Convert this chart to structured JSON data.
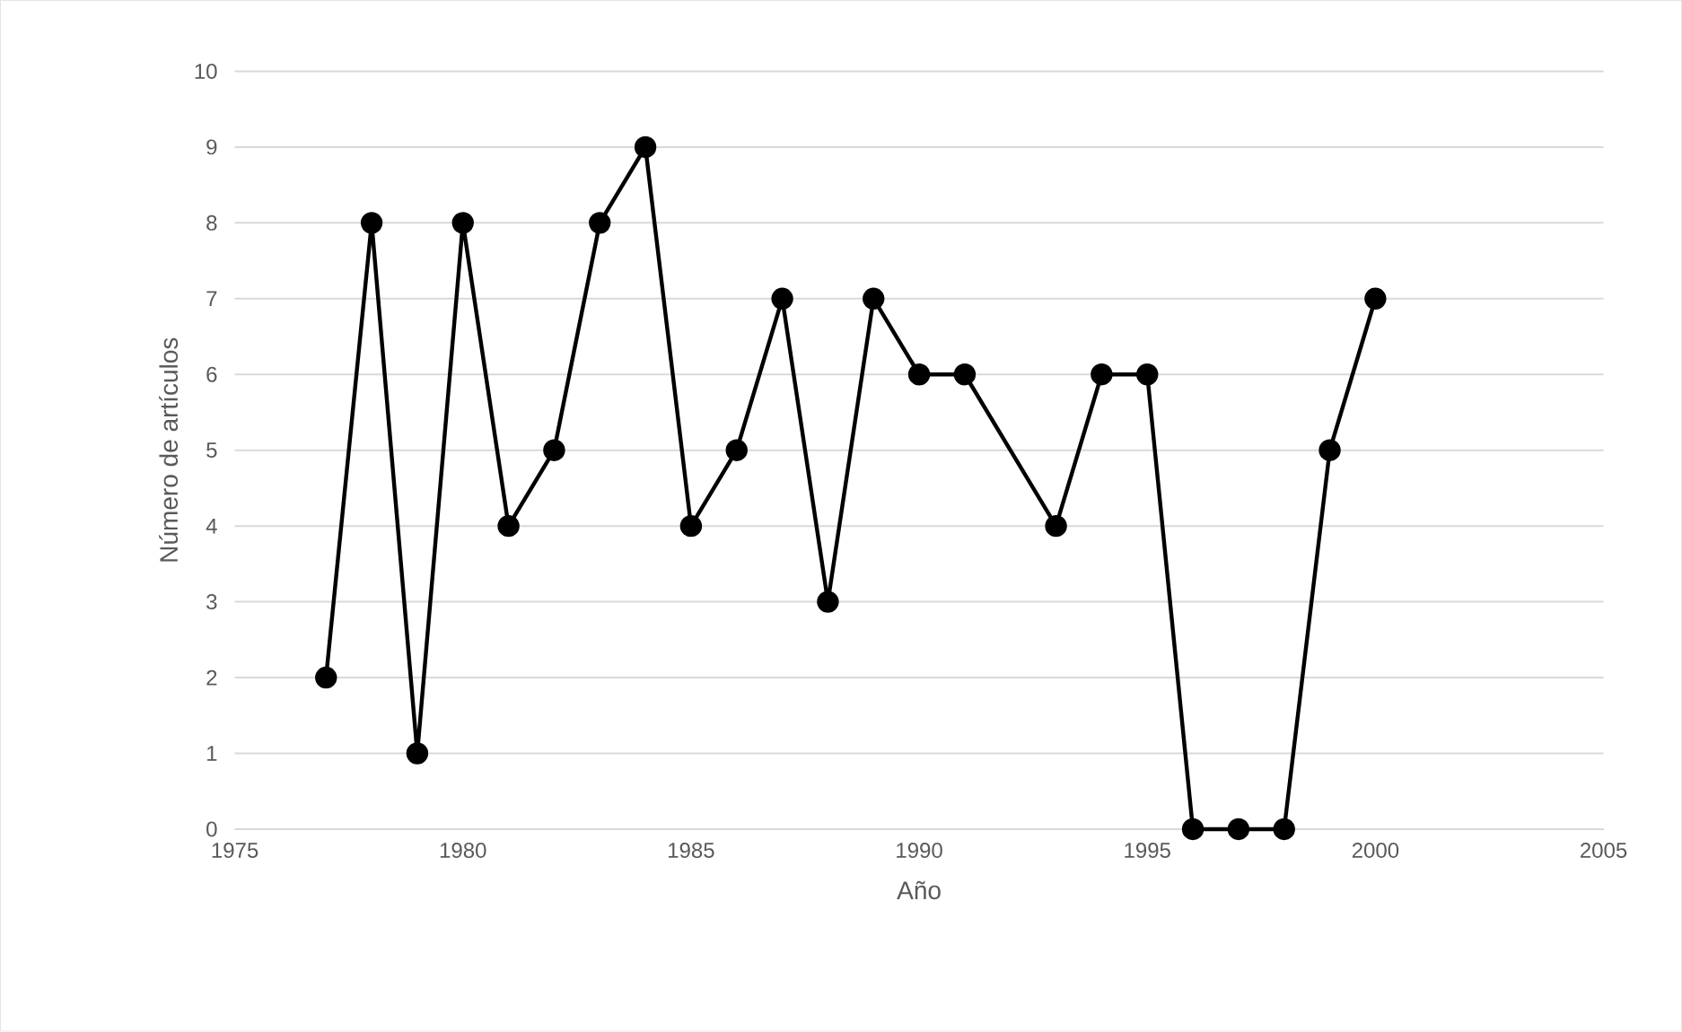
{
  "chart_data": {
    "type": "line",
    "xlabel": "Año",
    "ylabel": "Número de artículos",
    "x": [
      1977,
      1978,
      1979,
      1980,
      1981,
      1982,
      1983,
      1984,
      1985,
      1986,
      1987,
      1988,
      1989,
      1990,
      1991,
      1993,
      1994,
      1995,
      1996,
      1997,
      1998,
      1999,
      2000
    ],
    "values": [
      2,
      8,
      1,
      8,
      4,
      5,
      8,
      9,
      4,
      5,
      7,
      3,
      7,
      6,
      6,
      4,
      6,
      6,
      0,
      0,
      0,
      5,
      7
    ],
    "color": "#000000",
    "marker": "circle",
    "line_style": "solid",
    "xlim": [
      1975,
      2005
    ],
    "xticks": [
      1975,
      1980,
      1985,
      1990,
      1995,
      2000,
      2005
    ],
    "ylim": [
      0,
      10
    ],
    "yticks": [
      0,
      1,
      2,
      3,
      4,
      5,
      6,
      7,
      8,
      9,
      10
    ],
    "grid": "y"
  }
}
